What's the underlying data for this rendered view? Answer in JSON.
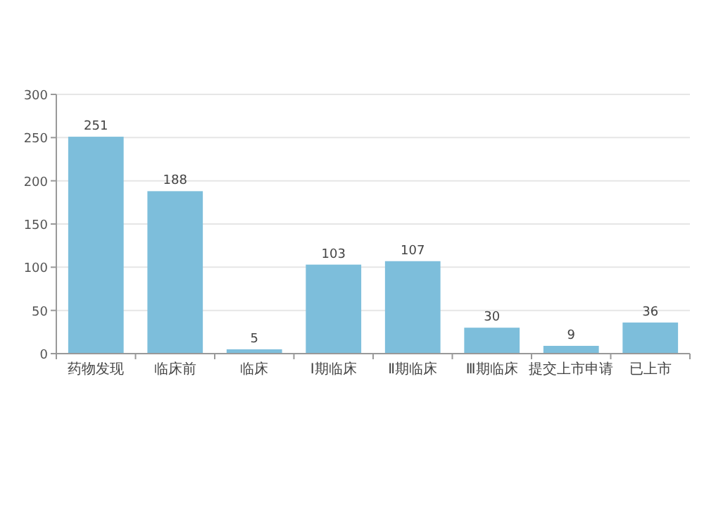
{
  "chart_data": {
    "type": "bar",
    "categories": [
      "药物发现",
      "临床前",
      "临床",
      "Ⅰ期临床",
      "Ⅱ期临床",
      "Ⅲ期临床",
      "提交上市申请",
      "已上市"
    ],
    "values": [
      251,
      188,
      5,
      103,
      107,
      30,
      9,
      36
    ],
    "color": "#7dbedb",
    "ylim": [
      0,
      300
    ],
    "yticks": [
      0,
      50,
      100,
      150,
      200,
      250,
      300
    ],
    "grid": "y",
    "data_labels": true
  }
}
